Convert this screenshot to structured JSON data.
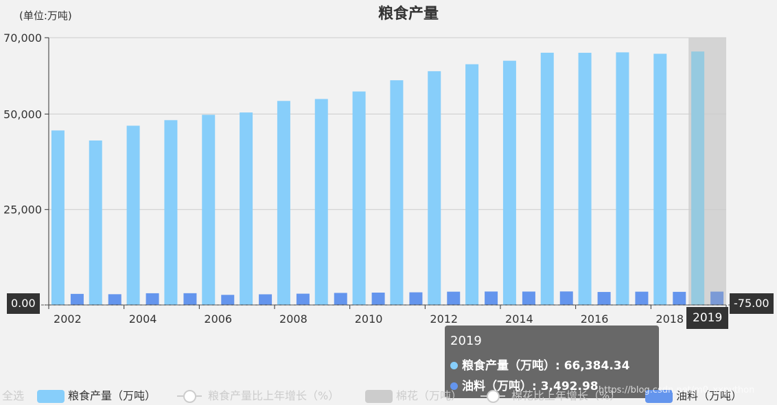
{
  "chart": {
    "title": "粮食产量",
    "unit_label": "(单位:万吨)",
    "y_pointer_left": "0.00",
    "y_pointer_right": "-75.00",
    "x_pointer_label": "2019",
    "watermark": "https://blog.csdn.net/m0_xxpython"
  },
  "tooltip": {
    "title": "2019",
    "rows": [
      {
        "label": "粮食产量（万吨）: 66,384.34",
        "color": "#87cefa"
      },
      {
        "label": "油料（万吨）: 3,492.98",
        "color": "#6495ed"
      }
    ]
  },
  "legend": {
    "select_all": "全选",
    "items": [
      {
        "label": "粮食产量（万吨）",
        "kind": "bar",
        "color": "#87cefa",
        "active": true
      },
      {
        "label": "粮食产量比上年增长（%）",
        "kind": "line",
        "color": "#cccccc",
        "active": false
      },
      {
        "label": "棉花（万吨）",
        "kind": "bar",
        "color": "#cccccc",
        "active": false
      },
      {
        "label": "棉花比上年增长（%）",
        "kind": "line",
        "color": "#cccccc",
        "active": false
      },
      {
        "label": "油料（万吨）",
        "kind": "bar",
        "color": "#6495ed",
        "active": true
      }
    ]
  },
  "chart_data": {
    "type": "bar",
    "title": "粮食产量",
    "ylabel": "(单位:万吨)",
    "ylim": [
      0,
      70000
    ],
    "yticks": [
      0,
      25000,
      50000,
      70000
    ],
    "ytick_labels": [
      "",
      "25,000",
      "50,000",
      "70,000"
    ],
    "categories": [
      "2002",
      "2003",
      "2004",
      "2005",
      "2006",
      "2007",
      "2008",
      "2009",
      "2010",
      "2011",
      "2012",
      "2013",
      "2014",
      "2015",
      "2016",
      "2017",
      "2018",
      "2019"
    ],
    "xtick_labels": [
      "2002",
      "",
      "2004",
      "",
      "2006",
      "",
      "2008",
      "",
      "2010",
      "",
      "2012",
      "",
      "2014",
      "",
      "2016",
      "",
      "2018",
      "2019"
    ],
    "highlight_index": 17,
    "series": [
      {
        "name": "粮食产量（万吨）",
        "color": "#87cefa",
        "values": [
          45706,
          43070,
          46947,
          48402,
          49804,
          50414,
          53434,
          53941,
          55911,
          58849,
          61223,
          63048,
          63965,
          66060,
          66044,
          66161,
          65789,
          66384.34
        ]
      },
      {
        "name": "油料（万吨）",
        "color": "#6495ed",
        "values": [
          2897,
          2811,
          3066,
          3077,
          2640,
          2787,
          2953,
          3154,
          3230,
          3307,
          3476,
          3517,
          3507,
          3537,
          3400,
          3475,
          3433,
          3492.98
        ]
      }
    ],
    "grid": true,
    "legend_position": "bottom"
  }
}
